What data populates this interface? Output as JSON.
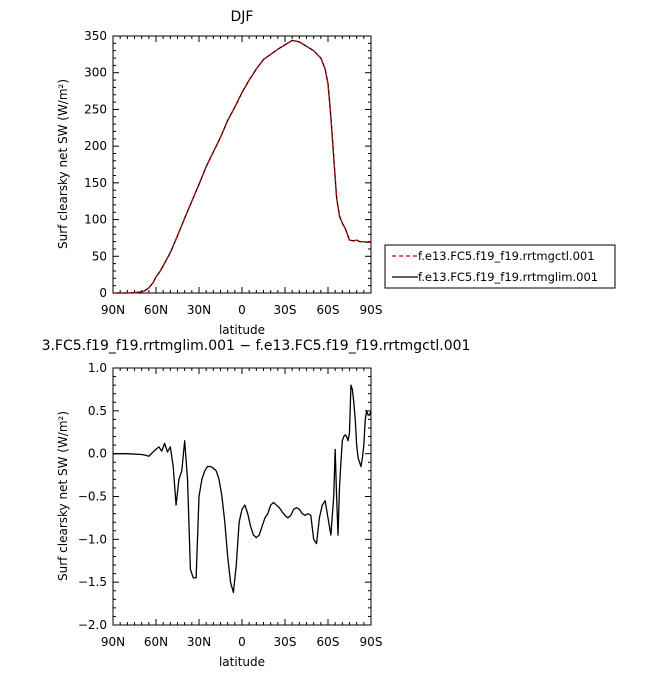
{
  "chart_data": [
    {
      "type": "line",
      "title": "DJF",
      "xlabel": "latitude",
      "ylabel": "Surf clearsky net SW (W/m²)",
      "xlim": [
        90,
        -90
      ],
      "ylim": [
        0,
        350
      ],
      "x_ticks": [
        90,
        60,
        30,
        0,
        -30,
        -60,
        -90
      ],
      "x_tick_labels": [
        "90N",
        "60N",
        "30N",
        "0",
        "30S",
        "60S",
        "90S"
      ],
      "y_ticks": [
        0,
        50,
        100,
        150,
        200,
        250,
        300,
        350
      ],
      "y_tick_labels": [
        "0",
        "50",
        "100",
        "150",
        "200",
        "250",
        "300",
        "350"
      ],
      "x": [
        90,
        85,
        80,
        75,
        70,
        68,
        65,
        62,
        60,
        57,
        55,
        50,
        45,
        40,
        35,
        30,
        25,
        20,
        15,
        10,
        5,
        0,
        -5,
        -10,
        -15,
        -20,
        -25,
        -30,
        -35,
        -40,
        -45,
        -50,
        -55,
        -58,
        -60,
        -62,
        -64,
        -66,
        -68,
        -70,
        -72,
        -75,
        -78,
        -80,
        -82,
        -85,
        -88,
        -90
      ],
      "series": [
        {
          "name": "f.e13.FC5.f19_f19.rrtmgctl.001",
          "color": "#cc0000",
          "dash": "dashed",
          "values": [
            0,
            0,
            0,
            0.5,
            1.5,
            3,
            7,
            14,
            22,
            30,
            37,
            55,
            78,
            102,
            125,
            148,
            172,
            192,
            212,
            235,
            253,
            273,
            290,
            305,
            318,
            325,
            332,
            338,
            344,
            342,
            336,
            330,
            320,
            305,
            285,
            240,
            185,
            130,
            105,
            95,
            88,
            72,
            71,
            72,
            70,
            70,
            69,
            69
          ]
        },
        {
          "name": "f.e13.FC5.f19_f19.rrtmglim.001",
          "color": "#000000",
          "dash": "solid",
          "values": [
            0,
            0,
            0,
            0.5,
            1.5,
            3,
            7,
            14,
            22,
            30,
            37,
            55,
            78,
            102,
            125,
            148,
            172,
            192,
            212,
            235,
            253,
            273,
            290,
            305,
            318,
            325,
            332,
            338,
            344,
            342,
            336,
            330,
            320,
            305,
            285,
            240,
            185,
            130,
            105,
            95,
            88,
            72,
            71,
            72,
            70,
            70,
            69,
            69
          ]
        }
      ],
      "legend_placement": "right"
    },
    {
      "type": "line",
      "title": "3.FC5.f19_f19.rrtmglim.001 − f.e13.FC5.f19_f19.rrtmgctl.001",
      "xlabel": "latitude",
      "ylabel": "Surf clearsky net SW (W/m²)",
      "xlim": [
        90,
        -90
      ],
      "ylim": [
        -2.0,
        1.0
      ],
      "x_ticks": [
        90,
        60,
        30,
        0,
        -30,
        -60,
        -90
      ],
      "x_tick_labels": [
        "90N",
        "60N",
        "30N",
        "0",
        "30S",
        "60S",
        "90S"
      ],
      "y_ticks": [
        1.0,
        0.5,
        0.0,
        -0.5,
        -1.0,
        -1.5,
        -2.0
      ],
      "y_tick_labels": [
        "1.0",
        "0.5",
        "0.0",
        "−0.5",
        "−1.0",
        "−1.5",
        "−2.0"
      ],
      "x": [
        90,
        80,
        70,
        67,
        65,
        62,
        60,
        58,
        56,
        54,
        52,
        50,
        48,
        46,
        44,
        42,
        40,
        38,
        36,
        34,
        32,
        30,
        28,
        26,
        24,
        22,
        20,
        18,
        16,
        14,
        12,
        10,
        8,
        6,
        4,
        2,
        0,
        -2,
        -4,
        -6,
        -8,
        -10,
        -12,
        -14,
        -16,
        -18,
        -20,
        -22,
        -24,
        -26,
        -28,
        -30,
        -32,
        -34,
        -36,
        -38,
        -40,
        -42,
        -44,
        -46,
        -48,
        -50,
        -52,
        -54,
        -56,
        -58,
        -60,
        -62,
        -64,
        -65,
        -66,
        -67,
        -68,
        -69,
        -70,
        -71,
        -72,
        -73,
        -74,
        -75,
        -76,
        -77,
        -78,
        -79,
        -80,
        -81,
        -82,
        -83,
        -84,
        -85,
        -86,
        -87,
        -88,
        -89,
        -90
      ],
      "series": [
        {
          "values": [
            0.0,
            0.0,
            -0.01,
            -0.02,
            -0.03,
            0.02,
            0.05,
            0.08,
            0.03,
            0.12,
            0.02,
            0.08,
            -0.15,
            -0.6,
            -0.3,
            -0.2,
            0.15,
            -0.3,
            -1.35,
            -1.45,
            -1.45,
            -0.5,
            -0.3,
            -0.2,
            -0.15,
            -0.15,
            -0.17,
            -0.2,
            -0.3,
            -0.5,
            -0.8,
            -1.2,
            -1.5,
            -1.62,
            -1.3,
            -0.8,
            -0.65,
            -0.6,
            -0.7,
            -0.85,
            -0.95,
            -0.98,
            -0.95,
            -0.85,
            -0.75,
            -0.7,
            -0.6,
            -0.57,
            -0.6,
            -0.63,
            -0.68,
            -0.72,
            -0.75,
            -0.72,
            -0.65,
            -0.63,
            -0.65,
            -0.7,
            -0.72,
            -0.7,
            -0.72,
            -1.0,
            -1.05,
            -0.75,
            -0.6,
            -0.55,
            -0.75,
            -0.95,
            -0.5,
            0.05,
            -0.5,
            -0.95,
            -0.4,
            -0.1,
            0.15,
            0.2,
            0.22,
            0.2,
            0.15,
            0.25,
            0.8,
            0.75,
            0.6,
            0.4,
            0.1,
            -0.05,
            -0.1,
            -0.15,
            -0.05,
            0.1,
            0.4,
            0.5,
            0.45,
            0.45,
            0.5
          ]
        }
      ]
    }
  ]
}
